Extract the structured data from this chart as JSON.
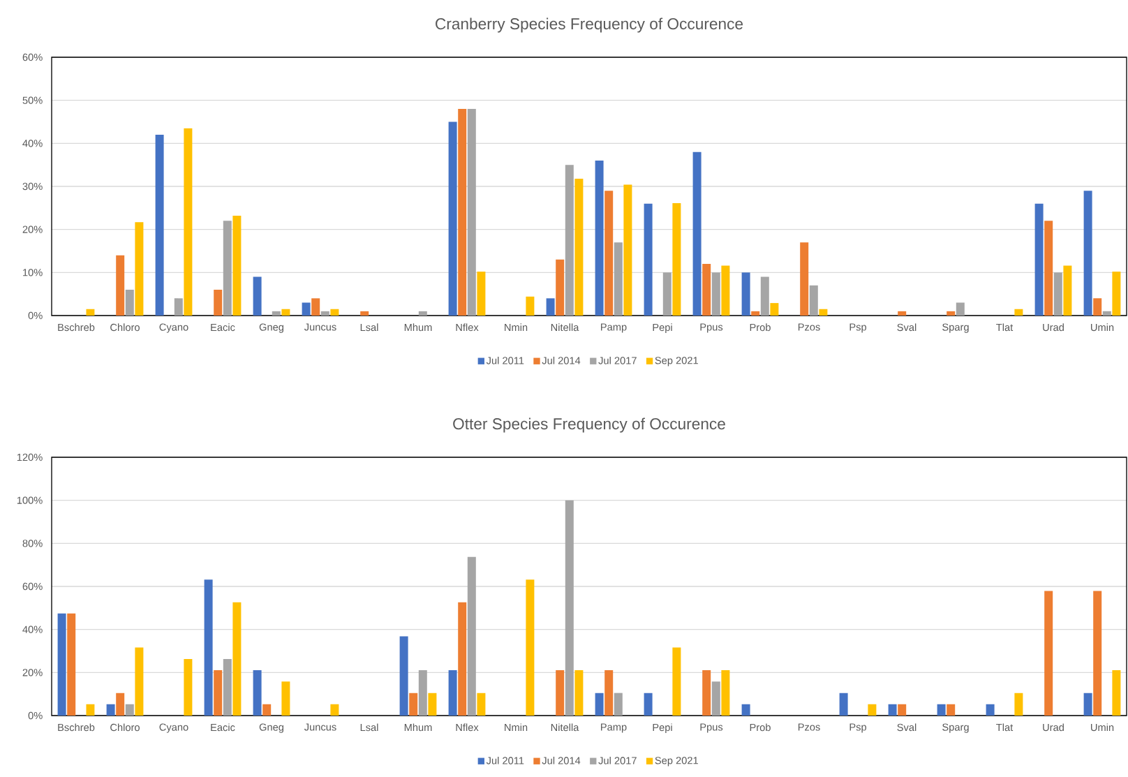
{
  "chart_data": [
    {
      "type": "bar",
      "title": "Cranberry Species Frequency of Occurence",
      "categories": [
        "Bschreb",
        "Chloro",
        "Cyano",
        "Eacic",
        "Gneg",
        "Juncus",
        "Lsal",
        "Mhum",
        "Nflex",
        "Nmin",
        "Nitella",
        "Pamp",
        "Pepi",
        "Ppus",
        "Prob",
        "Pzos",
        "Psp",
        "Sval",
        "Sparg",
        "Tlat",
        "Urad",
        "Umin"
      ],
      "series": [
        {
          "name": "Jul 2011",
          "color": "#4472c4",
          "values": [
            0,
            0,
            42,
            0,
            9,
            3,
            0,
            0,
            45,
            0,
            4,
            36,
            26,
            38,
            10,
            0,
            0,
            0,
            0,
            0,
            26,
            29
          ]
        },
        {
          "name": "Jul 2014",
          "color": "#ed7d31",
          "values": [
            0,
            14,
            0,
            6,
            0,
            4,
            1,
            0,
            48,
            0,
            13,
            29,
            0,
            12,
            1,
            17,
            0,
            1,
            1,
            0,
            22,
            4
          ]
        },
        {
          "name": "Jul 2017",
          "color": "#a5a5a5",
          "values": [
            0,
            6,
            4,
            22,
            1,
            1,
            0,
            1,
            48,
            0,
            35,
            17,
            10,
            10,
            9,
            7,
            0,
            0,
            3,
            0,
            10,
            1
          ]
        },
        {
          "name": "Sep 2021",
          "color": "#ffc000",
          "values": [
            1.5,
            21.7,
            43.5,
            23.2,
            1.5,
            1.5,
            0,
            0,
            10.2,
            4.4,
            31.8,
            30.4,
            26.1,
            11.6,
            2.9,
            1.5,
            0,
            0,
            0,
            1.5,
            11.6,
            10.2
          ]
        }
      ],
      "ylim": [
        0,
        60
      ],
      "yticks": [
        {
          "value": 0,
          "label": "0%"
        },
        {
          "value": 10,
          "label": "10%"
        },
        {
          "value": 20,
          "label": "20%"
        },
        {
          "value": 30,
          "label": "30%"
        },
        {
          "value": 40,
          "label": "40%"
        },
        {
          "value": 50,
          "label": "50%"
        },
        {
          "value": 60,
          "label": "60%"
        }
      ],
      "grid": "y",
      "legend": "bottom"
    },
    {
      "type": "bar",
      "title": "Otter Species Frequency of Occurence",
      "categories": [
        "Bschreb",
        "Chloro",
        "Cyano",
        "Eacic",
        "Gneg",
        "Juncus",
        "Lsal",
        "Mhum",
        "Nflex",
        "Nmin",
        "Nitella",
        "Pamp",
        "Pepi",
        "Ppus",
        "Prob",
        "Pzos",
        "Psp",
        "Sval",
        "Sparg",
        "Tlat",
        "Urad",
        "Umin"
      ],
      "series": [
        {
          "name": "Jul 2011",
          "color": "#4472c4",
          "values": [
            47.4,
            5.3,
            0,
            63.2,
            21.1,
            0,
            0,
            36.8,
            21.1,
            0,
            0,
            10.5,
            10.5,
            0,
            5.3,
            0,
            10.5,
            5.3,
            5.3,
            5.3,
            0,
            10.5
          ]
        },
        {
          "name": "Jul 2014",
          "color": "#ed7d31",
          "values": [
            47.4,
            10.5,
            0,
            21.1,
            5.3,
            0,
            0,
            10.5,
            52.6,
            0,
            21.1,
            21.1,
            0,
            21.1,
            0,
            0,
            0,
            5.3,
            5.3,
            0,
            57.9,
            57.9
          ]
        },
        {
          "name": "Jul 2017",
          "color": "#a5a5a5",
          "values": [
            0,
            5.3,
            0,
            26.3,
            0,
            0,
            0,
            21.1,
            73.7,
            0,
            100,
            10.5,
            0,
            15.8,
            0,
            0,
            0,
            0,
            0,
            0,
            0,
            0
          ]
        },
        {
          "name": "Sep 2021",
          "color": "#ffc000",
          "values": [
            5.3,
            31.6,
            26.3,
            52.6,
            15.8,
            5.3,
            0,
            10.5,
            10.5,
            63.2,
            21.1,
            0,
            31.6,
            21.1,
            0,
            0,
            5.3,
            0,
            0,
            10.5,
            0,
            21.1
          ]
        }
      ],
      "ylim": [
        0,
        120
      ],
      "yticks": [
        {
          "value": 0,
          "label": "0%"
        },
        {
          "value": 20,
          "label": "20%"
        },
        {
          "value": 40,
          "label": "40%"
        },
        {
          "value": 60,
          "label": "60%"
        },
        {
          "value": 80,
          "label": "80%"
        },
        {
          "value": 100,
          "label": "100%"
        },
        {
          "value": 120,
          "label": "120%"
        }
      ],
      "grid": "y",
      "legend": "bottom"
    }
  ]
}
